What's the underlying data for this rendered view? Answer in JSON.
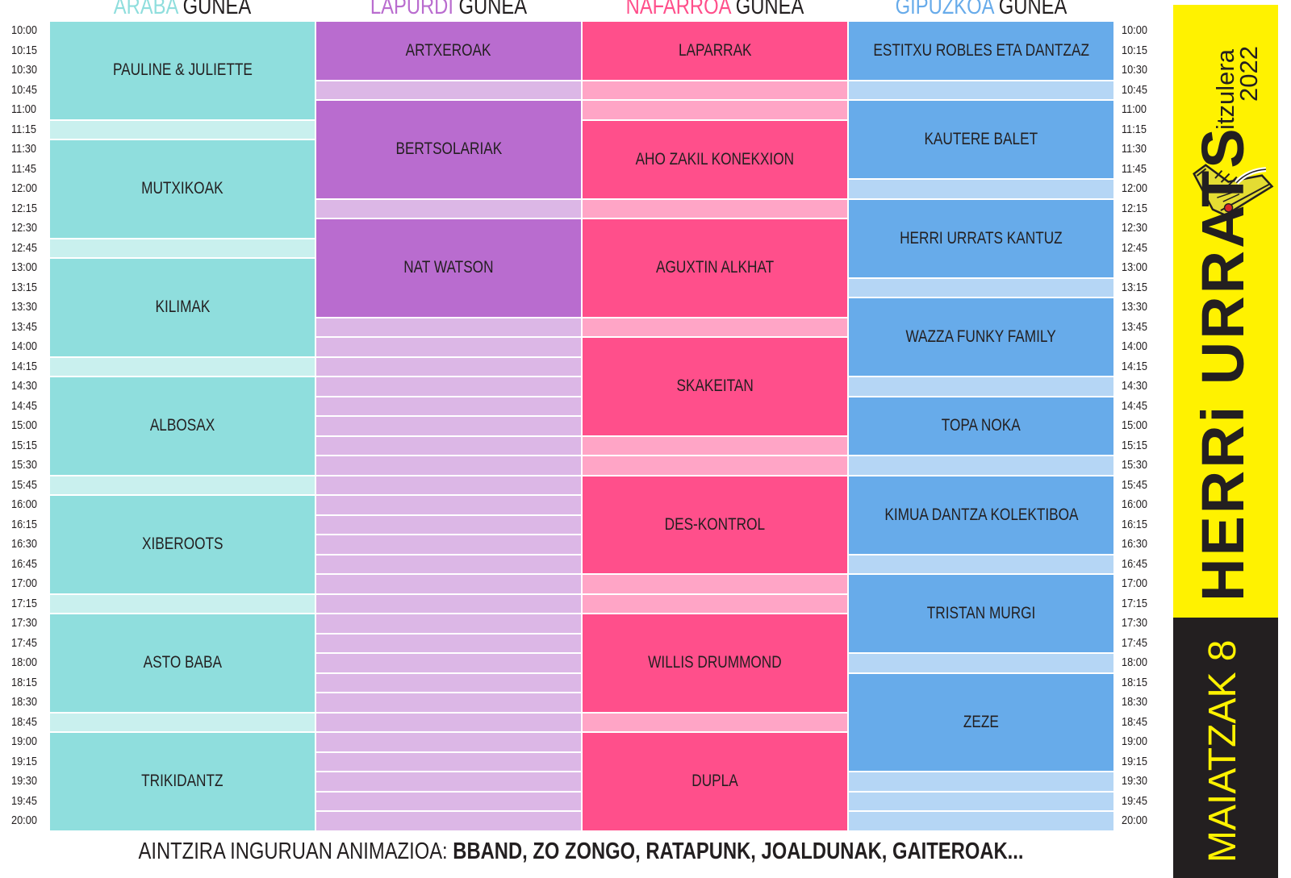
{
  "headers": [
    {
      "name": "ARABA",
      "suffix": "GUNEA",
      "color": "#8fdedd"
    },
    {
      "name": "LAPURDI",
      "suffix": "GUNEA",
      "color": "#b96ccf"
    },
    {
      "name": "NAFARROA",
      "suffix": "GUNEA",
      "color": "#ff4f8b"
    },
    {
      "name": "GIPUZKOA",
      "suffix": "GUNEA",
      "color": "#67abea"
    }
  ],
  "times": [
    "10:00",
    "10:15",
    "10:30",
    "10:45",
    "11:00",
    "11:15",
    "11:30",
    "11:45",
    "12:00",
    "12:15",
    "12:30",
    "12:45",
    "13:00",
    "13:15",
    "13:30",
    "13:45",
    "14:00",
    "14:15",
    "14:30",
    "14:45",
    "15:00",
    "15:15",
    "15:30",
    "15:45",
    "16:00",
    "16:15",
    "16:30",
    "16:45",
    "17:00",
    "17:15",
    "17:30",
    "17:45",
    "18:00",
    "18:15",
    "18:30",
    "18:45",
    "19:00",
    "19:15",
    "19:30",
    "19:45",
    "20:00"
  ],
  "columns": [
    {
      "id": "araba",
      "event_color": "#8fdedd",
      "light_color": "#c9f0ee",
      "events": [
        {
          "label": "PAULINE & JULIETTE",
          "start": "10:00",
          "end": "11:15"
        },
        {
          "label": "MUTXIKOAK",
          "start": "11:30",
          "end": "12:45"
        },
        {
          "label": "KILIMAK",
          "start": "13:00",
          "end": "14:15"
        },
        {
          "label": "ALBOSAX",
          "start": "14:30",
          "end": "15:45"
        },
        {
          "label": "XIBEROOTS",
          "start": "16:00",
          "end": "17:15"
        },
        {
          "label": "ASTO BABA",
          "start": "17:30",
          "end": "18:45"
        },
        {
          "label": "TRIKIDANTZ",
          "start": "19:00",
          "end": "20:15"
        }
      ]
    },
    {
      "id": "lapurdi",
      "event_color": "#b96ccf",
      "light_color": "#dcb7e6",
      "events": [
        {
          "label": "ARTXEROAK",
          "start": "10:00",
          "end": "10:45"
        },
        {
          "label": "BERTSOLARIAK",
          "start": "11:00",
          "end": "12:15"
        },
        {
          "label": "NAT WATSON",
          "start": "12:30",
          "end": "13:45"
        }
      ]
    },
    {
      "id": "nafarroa",
      "event_color": "#ff4f8b",
      "light_color": "#ffa5c6",
      "events": [
        {
          "label": "LAPARRAK",
          "start": "10:00",
          "end": "10:45"
        },
        {
          "label": "AHO ZAKIL KONEKXION",
          "start": "11:15",
          "end": "12:15"
        },
        {
          "label": "AGUXTIN ALKHAT",
          "start": "12:30",
          "end": "13:45"
        },
        {
          "label": "SKAKEITAN",
          "start": "14:00",
          "end": "15:15"
        },
        {
          "label": "DES-KONTROL",
          "start": "15:45",
          "end": "17:00"
        },
        {
          "label": "WILLIS DRUMMOND",
          "start": "17:30",
          "end": "18:45"
        },
        {
          "label": "DUPLA",
          "start": "19:00",
          "end": "20:15"
        }
      ]
    },
    {
      "id": "gipuzkoa",
      "event_color": "#67abea",
      "light_color": "#b5d6f5",
      "events": [
        {
          "label": "ESTITXU ROBLES ETA DANTZAZ",
          "start": "10:00",
          "end": "10:45"
        },
        {
          "label": "KAUTERE BALET",
          "start": "11:00",
          "end": "12:00"
        },
        {
          "label": "HERRI URRATS KANTUZ",
          "start": "12:15",
          "end": "13:15"
        },
        {
          "label": "WAZZA FUNKY FAMILY",
          "start": "13:30",
          "end": "14:30"
        },
        {
          "label": "TOPA NOKA",
          "start": "14:45",
          "end": "15:30"
        },
        {
          "label": "KIMUA DANTZA KOLEKTIBOA",
          "start": "15:45",
          "end": "16:45"
        },
        {
          "label": "TRISTAN MURGI",
          "start": "17:00",
          "end": "18:00"
        },
        {
          "label": "ZEZE",
          "start": "18:15",
          "end": "19:30"
        }
      ]
    }
  ],
  "footer": {
    "prefix": "AINTZIRA INGURUAN ANIMAZIOA:",
    "bold": "BBAND, ZO ZONGO, RATAPUNK, JOALDUNAK, GAITEROAK..."
  },
  "banner": {
    "itzulera": "itzulera",
    "year": "2022",
    "title": "HERRi URRATS",
    "date": "MAIATZAK 8",
    "yellow": "#fff200",
    "dark": "#231f20"
  }
}
